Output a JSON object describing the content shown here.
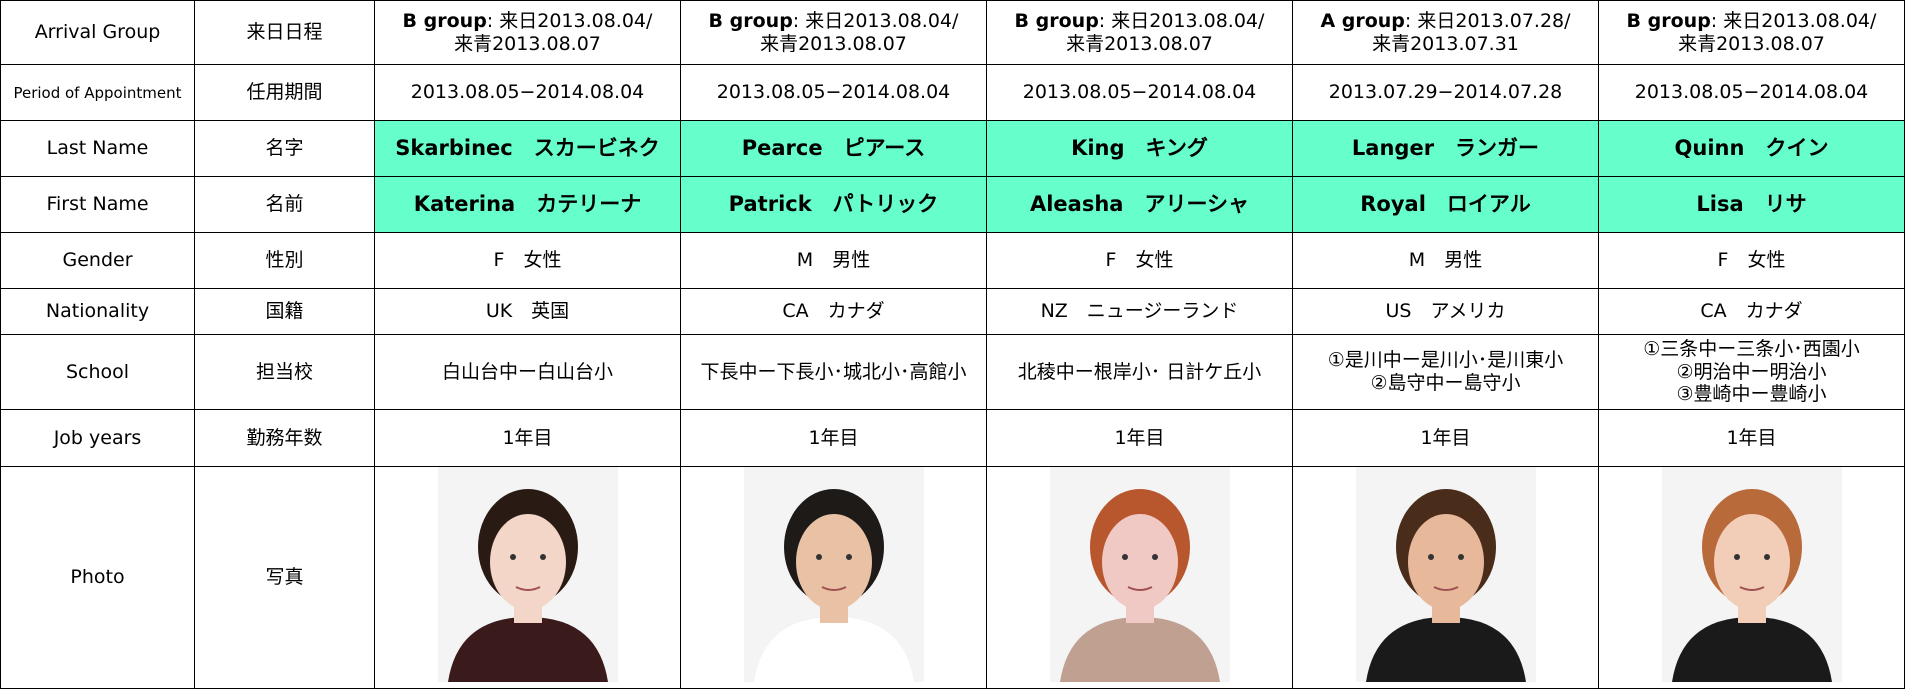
{
  "headers": [
    {
      "en": "Arrival Group",
      "ja": "来日日程"
    },
    {
      "en": "Period of Appointment",
      "ja": "任用期間"
    },
    {
      "en": "Last Name",
      "ja": "名字"
    },
    {
      "en": "First Name",
      "ja": "名前"
    },
    {
      "en": "Gender",
      "ja": "性別"
    },
    {
      "en": "Nationality",
      "ja": "国籍"
    },
    {
      "en": "School",
      "ja": "担当校"
    },
    {
      "en": "Job years",
      "ja": "勤務年数"
    },
    {
      "en": "Photo",
      "ja": "写真"
    }
  ],
  "people": [
    {
      "group": "B group",
      "arrival": ": 来日2013.08.04/",
      "arrival_line2": "来青2013.08.07",
      "period": "2013.08.05−2014.08.04",
      "last_name": "Skarbinec　スカービネク",
      "first_name": "Katerina　カテリーナ",
      "gender": "F　女性",
      "nationality": "UK　英国",
      "school": [
        "白山台中ー白山台小"
      ],
      "job_years": "1年目"
    },
    {
      "group": "B group",
      "arrival": ": 来日2013.08.04/",
      "arrival_line2": "来青2013.08.07",
      "period": "2013.08.05−2014.08.04",
      "last_name": "Pearce　ピアース",
      "first_name": "Patrick　パトリック",
      "gender": "M　男性",
      "nationality": "CA　カナダ",
      "school": [
        "下長中ー下長小･城北小･高館小"
      ],
      "job_years": "1年目"
    },
    {
      "group": "B group",
      "arrival": ": 来日2013.08.04/",
      "arrival_line2": "来青2013.08.07",
      "period": "2013.08.05−2014.08.04",
      "last_name": "King　キング",
      "first_name": "Aleasha　アリーシャ",
      "gender": "F　女性",
      "nationality": "NZ　ニュージーランド",
      "school": [
        "北稜中ー根岸小･ 日計ケ丘小"
      ],
      "job_years": "1年目"
    },
    {
      "group": "A group",
      "arrival": ": 来日2013.07.28/",
      "arrival_line2": "来青2013.07.31",
      "period": "2013.07.29−2014.07.28",
      "last_name": "Langer　ランガー",
      "first_name": "Royal　ロイアル",
      "gender": "M　男性",
      "nationality": "US　アメリカ",
      "school": [
        "①是川中ー是川小･是川東小",
        "②島守中ー島守小"
      ],
      "job_years": "1年目"
    },
    {
      "group": "B group",
      "arrival": ": 来日2013.08.04/",
      "arrival_line2": "来青2013.08.07",
      "period": "2013.08.05−2014.08.04",
      "last_name": "Quinn　クイン",
      "first_name": "Lisa　リサ",
      "gender": "F　女性",
      "nationality": "CA　カナダ",
      "school": [
        "①三条中ー三条小･西園小",
        "②明治中ー明治小",
        "③豊崎中ー豊崎小"
      ],
      "job_years": "1年目"
    }
  ]
}
